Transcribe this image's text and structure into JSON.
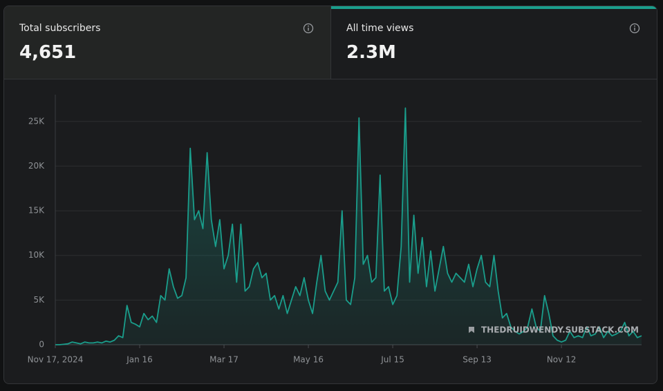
{
  "cards": [
    {
      "label": "Total subscribers",
      "value": "4,651"
    },
    {
      "label": "All time views",
      "value": "2.3M"
    }
  ],
  "watermark": "THEDRUIDWENDY.SUBSTACK.COM",
  "chart_data": {
    "type": "area",
    "color": "#1a9e8c",
    "grid": true,
    "categories": [
      "Nov 17, 2024",
      null,
      null,
      null,
      null,
      null,
      null,
      null,
      null,
      null,
      null,
      null,
      null,
      null,
      null,
      null,
      null,
      null,
      null,
      null,
      "Jan 16",
      null,
      null,
      null,
      null,
      null,
      null,
      null,
      null,
      null,
      null,
      null,
      null,
      null,
      null,
      null,
      null,
      null,
      null,
      null,
      "Mar 17",
      null,
      null,
      null,
      null,
      null,
      null,
      null,
      null,
      null,
      null,
      null,
      null,
      null,
      null,
      null,
      null,
      null,
      null,
      null,
      "May 16",
      null,
      null,
      null,
      null,
      null,
      null,
      null,
      null,
      null,
      null,
      null,
      null,
      null,
      null,
      null,
      null,
      null,
      null,
      null,
      "Jul 15",
      null,
      null,
      null,
      null,
      null,
      null,
      null,
      null,
      null,
      null,
      null,
      null,
      null,
      null,
      null,
      null,
      null,
      null,
      null,
      "Sep 13",
      null,
      null,
      null,
      null,
      null,
      null,
      null,
      null,
      null,
      null,
      null,
      null,
      null,
      null,
      null,
      null,
      null,
      null,
      null,
      "Nov 12",
      null,
      null,
      null,
      null,
      null,
      null,
      null,
      null,
      null,
      null,
      null,
      null,
      null,
      null,
      null,
      null,
      null,
      null,
      null
    ],
    "values": [
      0,
      0,
      50,
      100,
      300,
      200,
      100,
      300,
      200,
      200,
      300,
      200,
      400,
      300,
      500,
      1000,
      800,
      4400,
      2500,
      2300,
      2000,
      3500,
      2800,
      3200,
      2500,
      5500,
      5000,
      8500,
      6500,
      5200,
      5500,
      7500,
      22000,
      14000,
      15000,
      13000,
      21500,
      14000,
      11000,
      14000,
      8500,
      10000,
      13500,
      7000,
      13500,
      6000,
      6500,
      8500,
      9200,
      7500,
      8000,
      5000,
      5500,
      4000,
      5500,
      3500,
      5000,
      6500,
      5500,
      7500,
      5000,
      3500,
      7000,
      10000,
      6000,
      5000,
      6000,
      7000,
      15000,
      5000,
      4500,
      7500,
      25400,
      9000,
      10000,
      7000,
      7500,
      19000,
      6000,
      6500,
      4500,
      5500,
      11000,
      26500,
      7000,
      14500,
      8000,
      12000,
      6500,
      10500,
      6000,
      8500,
      11000,
      8000,
      7000,
      8000,
      7500,
      7000,
      9000,
      6500,
      8500,
      10000,
      7000,
      6500,
      10000,
      6000,
      3000,
      3500,
      2000,
      1500,
      1200,
      1500,
      2000,
      4000,
      2000,
      1500,
      5500,
      3500,
      1000,
      500,
      300,
      500,
      1500,
      800,
      1000,
      800,
      2000,
      1000,
      1200,
      2000,
      800,
      1500,
      1000,
      1200,
      1500,
      2500,
      1000,
      1500,
      800,
      1000
    ],
    "ylim": [
      0,
      28000
    ],
    "yticks": [
      0,
      {
        "value": 5000,
        "label": "5K"
      },
      {
        "value": 10000,
        "label": "10K"
      },
      {
        "value": 15000,
        "label": "15K"
      },
      {
        "value": 20000,
        "label": "20K"
      },
      {
        "value": 25000,
        "label": "25K"
      }
    ]
  }
}
